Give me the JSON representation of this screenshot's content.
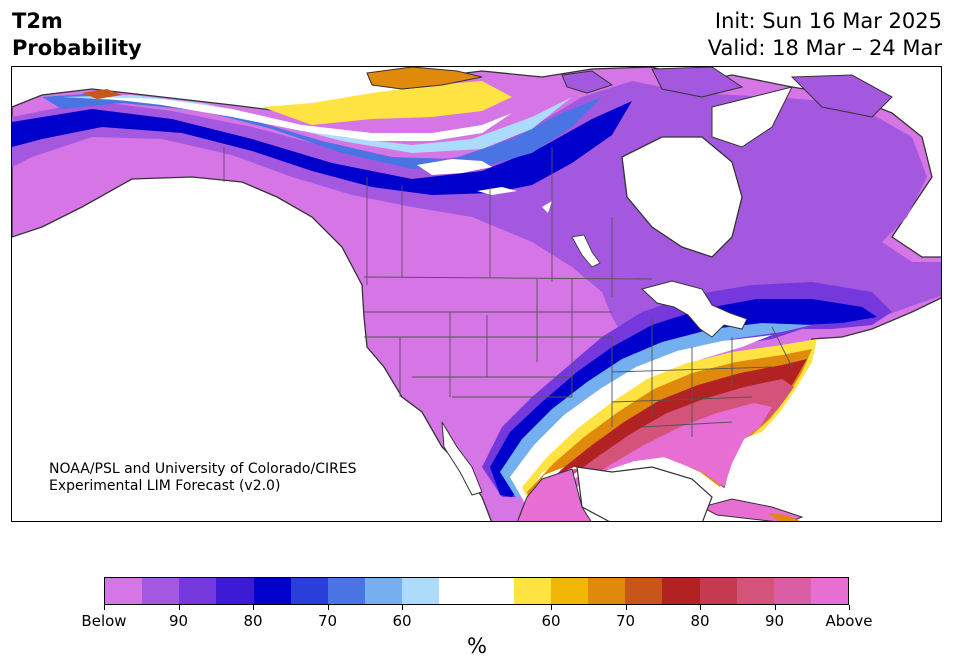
{
  "title": {
    "line1": "T2m",
    "line2": "Probability"
  },
  "dates": {
    "init": "Init: Sun 16 Mar 2025",
    "valid": "Valid: 18 Mar – 24 Mar"
  },
  "credit": {
    "line1": "NOAA/PSL and University of Colorado/CIRES",
    "line2": "Experimental LIM Forecast (v2.0)"
  },
  "colorbar": {
    "colors": [
      "#d675e6",
      "#a458e0",
      "#7538dc",
      "#3d1bd5",
      "#0000cc",
      "#2a3fd9",
      "#4a74e4",
      "#74b0f0",
      "#acdbfb",
      "#ffffff",
      "#ffffff",
      "#ffe342",
      "#f2b705",
      "#e08a0c",
      "#c8561a",
      "#b22222",
      "#c53a50",
      "#d3537a",
      "#da5ea6",
      "#e76ed3"
    ],
    "tick_labels": [
      "Below",
      "90",
      "80",
      "70",
      "60",
      "60",
      "70",
      "80",
      "90",
      "Above"
    ],
    "unit": "%"
  },
  "map_colors": {
    "ocean": "#ffffff",
    "land_outline": "#333333",
    "state_lines": "#555555"
  }
}
